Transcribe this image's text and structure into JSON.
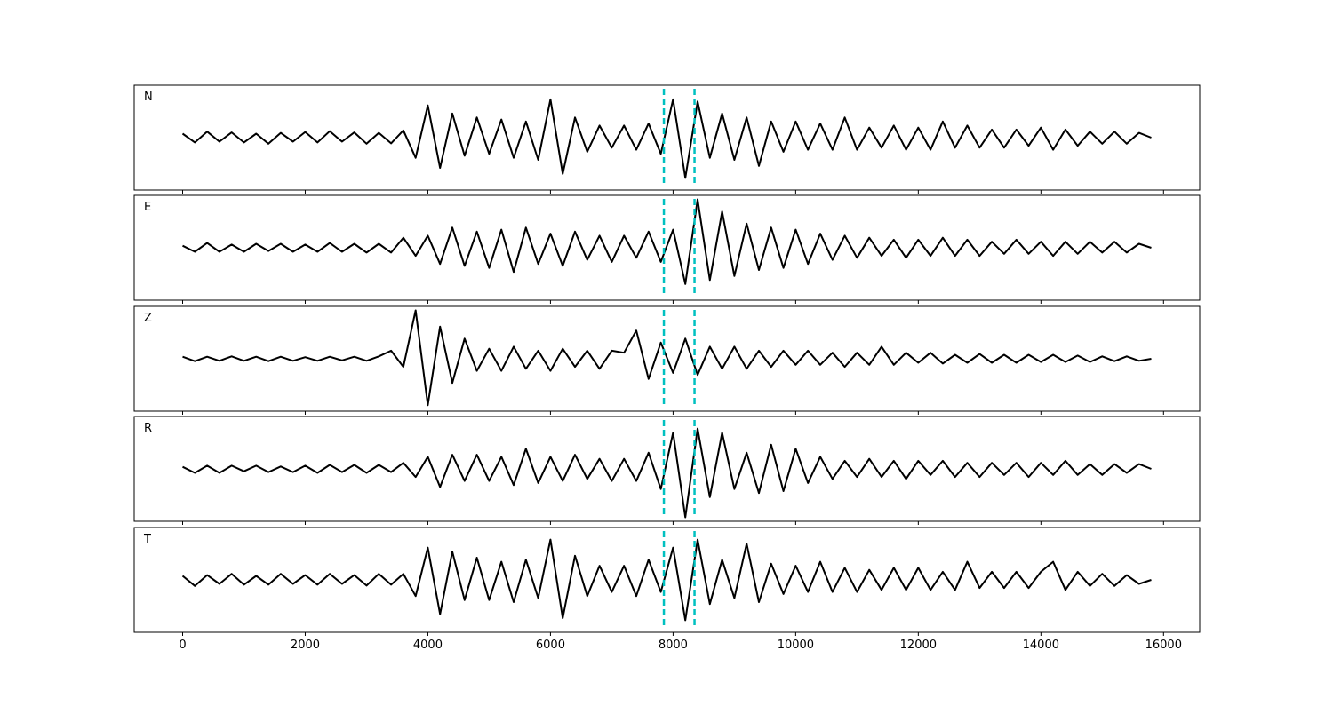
{
  "chart_data": [
    {
      "type": "line",
      "label": "N",
      "color": "#000000",
      "xlim": [
        -790,
        16590
      ],
      "ylim": [
        -1.3,
        1.3
      ],
      "xticks": [
        0,
        2000,
        4000,
        6000,
        8000,
        10000,
        12000,
        14000,
        16000
      ],
      "xtick_labels": false,
      "vlines": [
        7850,
        8350
      ],
      "vline_color": "#00c0c0",
      "x": [
        0,
        200,
        400,
        600,
        800,
        1000,
        1200,
        1400,
        1600,
        1800,
        2000,
        2200,
        2400,
        2600,
        2800,
        3000,
        3200,
        3400,
        3600,
        3800,
        4000,
        4200,
        4400,
        4600,
        4800,
        5000,
        5200,
        5400,
        5600,
        5800,
        6000,
        6200,
        6400,
        6600,
        6800,
        7000,
        7200,
        7400,
        7600,
        7800,
        8000,
        8200,
        8400,
        8600,
        8800,
        9000,
        9200,
        9400,
        9600,
        9800,
        10000,
        10200,
        10400,
        10600,
        10800,
        11000,
        11200,
        11400,
        11600,
        11800,
        12000,
        12200,
        12400,
        12600,
        12800,
        13000,
        13200,
        13400,
        13600,
        13800,
        14000,
        14200,
        14400,
        14600,
        14800,
        15000,
        15200,
        15400,
        15600,
        15800
      ],
      "values": [
        0.1,
        -0.12,
        0.15,
        -0.1,
        0.13,
        -0.12,
        0.1,
        -0.15,
        0.12,
        -0.1,
        0.14,
        -0.12,
        0.16,
        -0.1,
        0.13,
        -0.15,
        0.12,
        -0.14,
        0.18,
        -0.5,
        0.8,
        -0.75,
        0.6,
        -0.45,
        0.5,
        -0.4,
        0.45,
        -0.5,
        0.4,
        -0.55,
        0.95,
        -0.9,
        0.5,
        -0.35,
        0.3,
        -0.25,
        0.3,
        -0.3,
        0.35,
        -0.4,
        0.95,
        -1.0,
        0.9,
        -0.5,
        0.6,
        -0.55,
        0.5,
        -0.7,
        0.4,
        -0.35,
        0.4,
        -0.3,
        0.35,
        -0.3,
        0.5,
        -0.3,
        0.25,
        -0.25,
        0.3,
        -0.3,
        0.25,
        -0.3,
        0.4,
        -0.25,
        0.3,
        -0.25,
        0.2,
        -0.25,
        0.2,
        -0.2,
        0.25,
        -0.3,
        0.2,
        -0.2,
        0.15,
        -0.15,
        0.15,
        -0.15,
        0.12,
        0
      ]
    },
    {
      "type": "line",
      "label": "E",
      "color": "#000000",
      "xlim": [
        -790,
        16590
      ],
      "ylim": [
        -1.3,
        1.3
      ],
      "xticks": [
        0,
        2000,
        4000,
        6000,
        8000,
        10000,
        12000,
        14000,
        16000
      ],
      "xtick_labels": false,
      "vlines": [
        7850,
        8350
      ],
      "vline_color": "#00c0c0",
      "x": [
        0,
        200,
        400,
        600,
        800,
        1000,
        1200,
        1400,
        1600,
        1800,
        2000,
        2200,
        2400,
        2600,
        2800,
        3000,
        3200,
        3400,
        3600,
        3800,
        4000,
        4200,
        4400,
        4600,
        4800,
        5000,
        5200,
        5400,
        5600,
        5800,
        6000,
        6200,
        6400,
        6600,
        6800,
        7000,
        7200,
        7400,
        7600,
        7800,
        8000,
        8200,
        8400,
        8600,
        8800,
        9000,
        9200,
        9400,
        9600,
        9800,
        10000,
        10200,
        10400,
        10600,
        10800,
        11000,
        11200,
        11400,
        11600,
        11800,
        12000,
        12200,
        12400,
        12600,
        12800,
        13000,
        13200,
        13400,
        13600,
        13800,
        14000,
        14200,
        14400,
        14600,
        14800,
        15000,
        15200,
        15400,
        15600,
        15800
      ],
      "values": [
        0.05,
        -0.1,
        0.12,
        -0.1,
        0.08,
        -0.1,
        0.1,
        -0.08,
        0.1,
        -0.1,
        0.08,
        -0.1,
        0.12,
        -0.1,
        0.1,
        -0.12,
        0.1,
        -0.12,
        0.25,
        -0.2,
        0.3,
        -0.4,
        0.5,
        -0.45,
        0.4,
        -0.5,
        0.45,
        -0.6,
        0.5,
        -0.4,
        0.35,
        -0.45,
        0.4,
        -0.3,
        0.3,
        -0.35,
        0.3,
        -0.25,
        0.4,
        -0.35,
        0.45,
        -0.9,
        1.2,
        -0.8,
        0.9,
        -0.7,
        0.6,
        -0.55,
        0.5,
        -0.5,
        0.45,
        -0.4,
        0.35,
        -0.3,
        0.3,
        -0.25,
        0.25,
        -0.2,
        0.2,
        -0.25,
        0.2,
        -0.2,
        0.25,
        -0.2,
        0.2,
        -0.2,
        0.15,
        -0.15,
        0.2,
        -0.15,
        0.15,
        -0.2,
        0.15,
        -0.15,
        0.15,
        -0.12,
        0.15,
        -0.12,
        0.1,
        0
      ]
    },
    {
      "type": "line",
      "label": "Z",
      "color": "#000000",
      "xlim": [
        -790,
        16590
      ],
      "ylim": [
        -1.3,
        1.3
      ],
      "xticks": [
        0,
        2000,
        4000,
        6000,
        8000,
        10000,
        12000,
        14000,
        16000
      ],
      "xtick_labels": false,
      "vlines": [
        7850,
        8350
      ],
      "vline_color": "#00c0c0",
      "x": [
        0,
        200,
        400,
        600,
        800,
        1000,
        1200,
        1400,
        1600,
        1800,
        2000,
        2200,
        2400,
        2600,
        2800,
        3000,
        3200,
        3400,
        3600,
        3800,
        4000,
        4200,
        4400,
        4600,
        4800,
        5000,
        5200,
        5400,
        5600,
        5800,
        6000,
        6200,
        6400,
        6600,
        6800,
        7000,
        7200,
        7400,
        7600,
        7800,
        8000,
        8200,
        8400,
        8600,
        8800,
        9000,
        9200,
        9400,
        9600,
        9800,
        10000,
        10200,
        10400,
        10600,
        10800,
        11000,
        11200,
        11400,
        11600,
        11800,
        12000,
        12200,
        12400,
        12600,
        12800,
        13000,
        13200,
        13400,
        13600,
        13800,
        14000,
        14200,
        14400,
        14600,
        14800,
        15000,
        15200,
        15400,
        15600,
        15800
      ],
      "values": [
        0.05,
        -0.06,
        0.05,
        -0.05,
        0.06,
        -0.05,
        0.05,
        -0.06,
        0.05,
        -0.05,
        0.04,
        -0.05,
        0.05,
        -0.04,
        0.05,
        -0.05,
        0.06,
        0.2,
        -0.2,
        1.2,
        -1.15,
        0.8,
        -0.6,
        0.5,
        -0.3,
        0.25,
        -0.3,
        0.3,
        -0.25,
        0.2,
        -0.3,
        0.25,
        -0.2,
        0.2,
        -0.25,
        0.2,
        0.15,
        0.7,
        -0.5,
        0.4,
        -0.35,
        0.5,
        -0.4,
        0.3,
        -0.25,
        0.3,
        -0.25,
        0.2,
        -0.2,
        0.2,
        -0.15,
        0.2,
        -0.15,
        0.15,
        -0.2,
        0.15,
        -0.15,
        0.3,
        -0.15,
        0.15,
        -0.1,
        0.15,
        -0.12,
        0.1,
        -0.1,
        0.12,
        -0.1,
        0.1,
        -0.1,
        0.1,
        -0.08,
        0.1,
        -0.08,
        0.08,
        -0.08,
        0.06,
        -0.06,
        0.06,
        -0.05,
        0
      ]
    },
    {
      "type": "line",
      "label": "R",
      "color": "#000000",
      "xlim": [
        -790,
        16590
      ],
      "ylim": [
        -1.3,
        1.3
      ],
      "xticks": [
        0,
        2000,
        4000,
        6000,
        8000,
        10000,
        12000,
        14000,
        16000
      ],
      "xtick_labels": false,
      "vlines": [
        7850,
        8350
      ],
      "vline_color": "#00c0c0",
      "x": [
        0,
        200,
        400,
        600,
        800,
        1000,
        1200,
        1400,
        1600,
        1800,
        2000,
        2200,
        2400,
        2600,
        2800,
        3000,
        3200,
        3400,
        3600,
        3800,
        4000,
        4200,
        4400,
        4600,
        4800,
        5000,
        5200,
        5400,
        5600,
        5800,
        6000,
        6200,
        6400,
        6600,
        6800,
        7000,
        7200,
        7400,
        7600,
        7800,
        8000,
        8200,
        8400,
        8600,
        8800,
        9000,
        9200,
        9400,
        9600,
        9800,
        10000,
        10200,
        10400,
        10600,
        10800,
        11000,
        11200,
        11400,
        11600,
        11800,
        12000,
        12200,
        12400,
        12600,
        12800,
        13000,
        13200,
        13400,
        13600,
        13800,
        14000,
        14200,
        14400,
        14600,
        14800,
        15000,
        15200,
        15400,
        15600,
        15800
      ],
      "values": [
        0.05,
        -0.1,
        0.08,
        -0.1,
        0.08,
        -0.06,
        0.08,
        -0.08,
        0.06,
        -0.08,
        0.08,
        -0.1,
        0.1,
        -0.08,
        0.1,
        -0.1,
        0.1,
        -0.08,
        0.15,
        -0.2,
        0.3,
        -0.45,
        0.35,
        -0.3,
        0.35,
        -0.3,
        0.3,
        -0.4,
        0.5,
        -0.35,
        0.3,
        -0.3,
        0.35,
        -0.25,
        0.25,
        -0.3,
        0.25,
        -0.3,
        0.4,
        -0.5,
        0.9,
        -1.2,
        1.0,
        -0.7,
        0.9,
        -0.5,
        0.4,
        -0.6,
        0.6,
        -0.55,
        0.5,
        -0.35,
        0.3,
        -0.25,
        0.2,
        -0.2,
        0.25,
        -0.2,
        0.2,
        -0.25,
        0.2,
        -0.15,
        0.2,
        -0.2,
        0.15,
        -0.2,
        0.15,
        -0.15,
        0.15,
        -0.2,
        0.15,
        -0.15,
        0.2,
        -0.15,
        0.12,
        -0.15,
        0.12,
        -0.1,
        0.12,
        0
      ]
    },
    {
      "type": "line",
      "label": "T",
      "color": "#000000",
      "xlim": [
        -790,
        16590
      ],
      "ylim": [
        -1.3,
        1.3
      ],
      "xticks": [
        0,
        2000,
        4000,
        6000,
        8000,
        10000,
        12000,
        14000,
        16000
      ],
      "xtick_labels": true,
      "vlines": [
        7850,
        8350
      ],
      "vline_color": "#00c0c0",
      "x": [
        0,
        200,
        400,
        600,
        800,
        1000,
        1200,
        1400,
        1600,
        1800,
        2000,
        2200,
        2400,
        2600,
        2800,
        3000,
        3200,
        3400,
        3600,
        3800,
        4000,
        4200,
        4400,
        4600,
        4800,
        5000,
        5200,
        5400,
        5600,
        5800,
        6000,
        6200,
        6400,
        6600,
        6800,
        7000,
        7200,
        7400,
        7600,
        7800,
        8000,
        8200,
        8400,
        8600,
        8800,
        9000,
        9200,
        9400,
        9600,
        9800,
        10000,
        10200,
        10400,
        10600,
        10800,
        11000,
        11200,
        11400,
        11600,
        11800,
        12000,
        12200,
        12400,
        12600,
        12800,
        13000,
        13200,
        13400,
        13600,
        13800,
        14000,
        14200,
        14400,
        14600,
        14800,
        15000,
        15200,
        15400,
        15600,
        15800
      ],
      "values": [
        0.1,
        -0.15,
        0.12,
        -0.1,
        0.15,
        -0.12,
        0.1,
        -0.12,
        0.15,
        -0.1,
        0.12,
        -0.12,
        0.15,
        -0.1,
        0.12,
        -0.14,
        0.15,
        -0.12,
        0.15,
        -0.4,
        0.8,
        -0.85,
        0.7,
        -0.5,
        0.55,
        -0.5,
        0.45,
        -0.55,
        0.5,
        -0.45,
        1.0,
        -0.95,
        0.6,
        -0.4,
        0.35,
        -0.3,
        0.35,
        -0.4,
        0.5,
        -0.3,
        0.8,
        -1.0,
        1.0,
        -0.6,
        0.5,
        -0.45,
        0.9,
        -0.55,
        0.4,
        -0.35,
        0.35,
        -0.3,
        0.45,
        -0.3,
        0.3,
        -0.3,
        0.25,
        -0.25,
        0.3,
        -0.25,
        0.3,
        -0.25,
        0.2,
        -0.25,
        0.45,
        -0.2,
        0.2,
        -0.2,
        0.2,
        -0.2,
        0.2,
        0.45,
        -0.25,
        0.2,
        -0.15,
        0.15,
        -0.15,
        0.12,
        -0.1,
        0
      ]
    }
  ]
}
